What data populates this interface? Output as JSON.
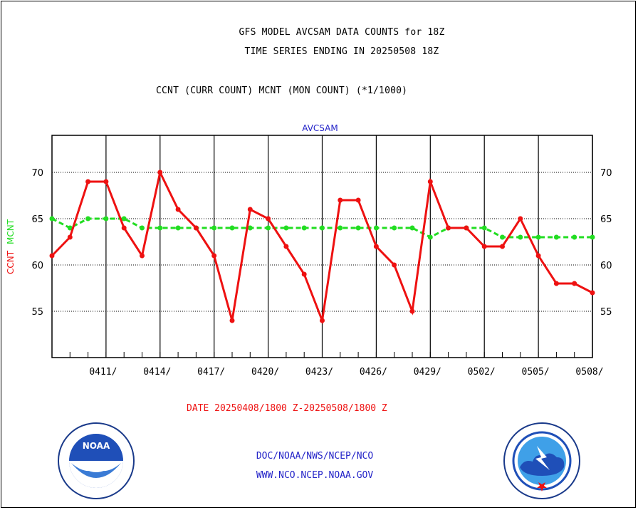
{
  "header": {
    "line1": "GFS MODEL AVCSAM DATA COUNTS for 18Z",
    "line2": "TIME SERIES ENDING IN 20250508 18Z",
    "line3": "CCNT (CURR COUNT) MCNT (MON COUNT) (*1/1000)"
  },
  "date_range": "DATE 20250408/1800 Z-20250508/1800 Z",
  "footer": {
    "line1": "DOC/NOAA/NWS/NCEP/NCO",
    "line2": "WWW.NCO.NCEP.NOAA.GOV"
  },
  "logos": {
    "left": {
      "icon": "noaa-logo",
      "text": "NOAA"
    },
    "right": {
      "icon": "nws-logo"
    }
  },
  "colors": {
    "ccnt": "#ee1111",
    "mcnt": "#22dd22",
    "plot_label": "#2323c8"
  },
  "chart_data": {
    "type": "line",
    "title": "AVCSAM",
    "ylabel_left": "CCNT",
    "ylabel_right": "MCNT",
    "ylim": [
      50,
      74
    ],
    "yticks": [
      55,
      60,
      65,
      70
    ],
    "x_start_day": "0408",
    "x_end_day": "0508",
    "xtick_labels": [
      "0411/",
      "0414/",
      "0417/",
      "0420/",
      "0423/",
      "0426/",
      "0429/",
      "0502/",
      "0505/",
      "0508/"
    ],
    "x": [
      "0408",
      "0409",
      "0410",
      "0411",
      "0412",
      "0413",
      "0414",
      "0415",
      "0416",
      "0417",
      "0418",
      "0419",
      "0420",
      "0421",
      "0422",
      "0423",
      "0424",
      "0425",
      "0426",
      "0427",
      "0428",
      "0429",
      "0430",
      "0501",
      "0502",
      "0503",
      "0504",
      "0505",
      "0506",
      "0507",
      "0508"
    ],
    "series": [
      {
        "name": "CCNT",
        "values": [
          61,
          63,
          69,
          69,
          64,
          61,
          70,
          66,
          64,
          61,
          54,
          66,
          65,
          62,
          59,
          54,
          67,
          67,
          62,
          60,
          55,
          69,
          64,
          64,
          62,
          62,
          65,
          61,
          58,
          58,
          57
        ]
      },
      {
        "name": "MCNT",
        "values": [
          65,
          64,
          65,
          65,
          65,
          64,
          64,
          64,
          64,
          64,
          64,
          64,
          64,
          64,
          64,
          64,
          64,
          64,
          64,
          64,
          64,
          63,
          64,
          64,
          64,
          63,
          63,
          63,
          63,
          63,
          63
        ]
      }
    ],
    "grid": true
  }
}
